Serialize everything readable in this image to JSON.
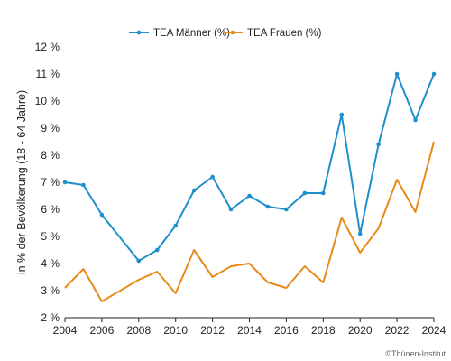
{
  "chart_data": {
    "type": "line",
    "ylabel": "in % der Bevölkerung (18 - 64 Jahre)",
    "ylim": [
      2,
      12
    ],
    "y_ticks": [
      2,
      3,
      4,
      5,
      6,
      7,
      8,
      9,
      10,
      11,
      12
    ],
    "y_tick_suffix": " %",
    "xlim": [
      2004,
      2024
    ],
    "x_ticks": [
      2004,
      2006,
      2008,
      2010,
      2012,
      2014,
      2016,
      2018,
      2020,
      2022,
      2024
    ],
    "legend_position": "top-center",
    "grid": false,
    "x": [
      2004,
      2005,
      2006,
      2008,
      2009,
      2010,
      2011,
      2012,
      2013,
      2014,
      2015,
      2016,
      2017,
      2018,
      2019,
      2020,
      2021,
      2022,
      2023,
      2024
    ],
    "series": [
      {
        "name": "TEA Männer (%)",
        "color": "#1f8fcc",
        "markers": true,
        "values": [
          7.0,
          6.9,
          5.8,
          4.1,
          4.5,
          5.4,
          6.7,
          7.2,
          6.0,
          6.5,
          6.1,
          6.0,
          6.6,
          6.6,
          9.5,
          5.1,
          8.4,
          11.0,
          9.3,
          11.0
        ]
      },
      {
        "name": "TEA Frauen (%)",
        "color": "#e88a1a",
        "markers": false,
        "values": [
          3.1,
          3.8,
          2.6,
          3.4,
          3.7,
          2.9,
          4.5,
          3.5,
          3.9,
          4.0,
          3.3,
          3.1,
          3.9,
          3.3,
          5.7,
          4.4,
          5.3,
          7.1,
          5.9,
          8.5
        ]
      }
    ]
  },
  "credit": "©Thünen-Institut"
}
